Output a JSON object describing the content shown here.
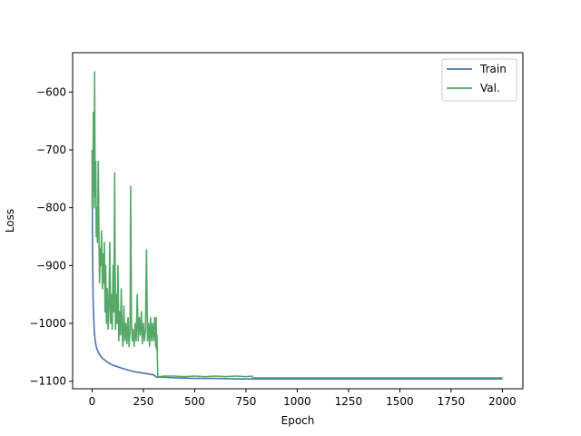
{
  "chart_data": {
    "type": "line",
    "title": "",
    "xlabel": "Epoch",
    "ylabel": "Loss",
    "xlim": [
      -95,
      2100
    ],
    "ylim": [
      -1113,
      -532
    ],
    "xticks": [
      0,
      250,
      500,
      750,
      1000,
      1250,
      1500,
      1750,
      2000
    ],
    "xtick_labels": [
      "0",
      "250",
      "500",
      "750",
      "1000",
      "1250",
      "1500",
      "1750",
      "2000"
    ],
    "yticks": [
      -1100,
      -1000,
      -900,
      -800,
      -700,
      -600
    ],
    "ytick_labels": [
      "−1100",
      "−1000",
      "−900",
      "−800",
      "−700",
      "−600"
    ],
    "grid": false,
    "legend_position": "top-right",
    "series": [
      {
        "name": "Train",
        "color": "#4c72b0",
        "x": [
          0,
          2,
          5,
          10,
          15,
          20,
          30,
          40,
          50,
          75,
          100,
          150,
          200,
          250,
          300,
          315,
          350,
          400,
          500,
          600,
          700,
          780,
          900,
          1000,
          1250,
          1500,
          1750,
          2000
        ],
        "y": [
          -700,
          -870,
          -960,
          -1010,
          -1030,
          -1040,
          -1050,
          -1056,
          -1060,
          -1067,
          -1072,
          -1078,
          -1083,
          -1086,
          -1089,
          -1093,
          -1093,
          -1094,
          -1095,
          -1095,
          -1096,
          -1096,
          -1096,
          -1096,
          -1096,
          -1096,
          -1096,
          -1096
        ]
      },
      {
        "name": "Val.",
        "color": "#55a868",
        "x": [
          0,
          2,
          4,
          6,
          8,
          10,
          12,
          15,
          18,
          20,
          23,
          26,
          30,
          33,
          36,
          40,
          43,
          46,
          50,
          53,
          56,
          60,
          63,
          66,
          70,
          74,
          78,
          82,
          86,
          90,
          94,
          98,
          102,
          106,
          110,
          114,
          118,
          122,
          126,
          130,
          134,
          138,
          142,
          146,
          150,
          155,
          160,
          165,
          170,
          175,
          180,
          185,
          188,
          192,
          196,
          200,
          205,
          210,
          215,
          220,
          225,
          230,
          235,
          240,
          245,
          250,
          255,
          260,
          265,
          270,
          275,
          280,
          285,
          290,
          295,
          300,
          305,
          310,
          312,
          314,
          316,
          320,
          330,
          350,
          400,
          450,
          500,
          550,
          600,
          650,
          700,
          750,
          780,
          785,
          800,
          900,
          1000,
          1250,
          1500,
          1750,
          2000
        ],
        "y": [
          -800,
          -700,
          -770,
          -635,
          -750,
          -800,
          -565,
          -780,
          -720,
          -850,
          -800,
          -860,
          -720,
          -830,
          -930,
          -870,
          -900,
          -840,
          -940,
          -880,
          -930,
          -860,
          -980,
          -900,
          -1000,
          -940,
          -1010,
          -970,
          -860,
          -1000,
          -950,
          -1010,
          -900,
          -980,
          -740,
          -1010,
          -950,
          -1000,
          -900,
          -1030,
          -980,
          -1020,
          -940,
          -1010,
          -1040,
          -970,
          -1030,
          -1000,
          -1035,
          -990,
          -1040,
          -1010,
          -763,
          -1000,
          -1030,
          -1010,
          -1040,
          -1000,
          -1030,
          -950,
          -1030,
          -990,
          -1020,
          -980,
          -1035,
          -1000,
          -1030,
          -1010,
          -873,
          -1030,
          -1000,
          -1040,
          -990,
          -1030,
          -1000,
          -1030,
          -990,
          -1040,
          -990,
          -1045,
          -1020,
          -1092,
          -1092,
          -1091,
          -1091,
          -1092,
          -1091,
          -1092,
          -1091,
          -1092,
          -1091,
          -1092,
          -1091,
          -1094,
          -1094,
          -1094,
          -1094,
          -1094,
          -1094,
          -1094,
          -1094
        ]
      }
    ]
  }
}
